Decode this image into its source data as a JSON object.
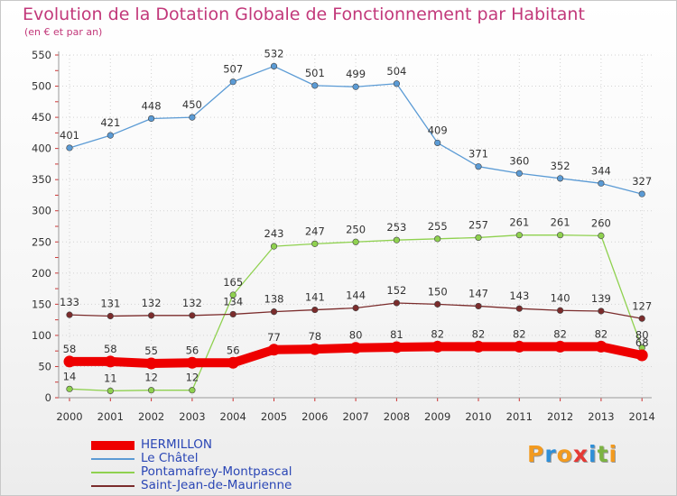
{
  "chart_data": {
    "type": "line",
    "title": "Evolution de la Dotation Globale de Fonctionnement par Habitant",
    "subtitle": "(en € et par an)",
    "xlabel": "",
    "ylabel": "",
    "ylim": [
      0,
      550
    ],
    "yticks": [
      0,
      50,
      100,
      150,
      200,
      250,
      300,
      350,
      400,
      450,
      500,
      550
    ],
    "grid": true,
    "legend_position": "bottom-left",
    "categories": [
      "2000",
      "2001",
      "2002",
      "2003",
      "2004",
      "2005",
      "2006",
      "2007",
      "2008",
      "2009",
      "2010",
      "2011",
      "2012",
      "2013",
      "2014"
    ],
    "series": [
      {
        "name": "HERMILLON",
        "color": "#ee0000",
        "emphasis": true,
        "values": [
          58,
          58,
          55,
          56,
          56,
          77,
          78,
          80,
          81,
          82,
          82,
          82,
          82,
          82,
          68
        ],
        "labels": [
          "58",
          "58",
          "55",
          "56",
          "56",
          "77",
          "78",
          "80",
          "81",
          "82",
          "82",
          "82",
          "82",
          "82",
          "68"
        ]
      },
      {
        "name": "Le Châtel",
        "color": "#5b9bd5",
        "emphasis": false,
        "values": [
          401,
          421,
          448,
          450,
          507,
          532,
          501,
          499,
          504,
          409,
          371,
          360,
          352,
          344,
          327
        ],
        "labels": [
          "401",
          "421",
          "448",
          "450",
          "507",
          "532",
          "501",
          "499",
          "504",
          "409",
          "371",
          "360",
          "352",
          "344",
          "327"
        ]
      },
      {
        "name": "Pontamafrey-Montpascal",
        "color": "#8fd14f",
        "emphasis": false,
        "values": [
          14,
          11,
          12,
          12,
          165,
          243,
          247,
          250,
          253,
          255,
          257,
          261,
          261,
          260,
          80
        ],
        "labels": [
          "14",
          "11",
          "12",
          "12",
          "165",
          "243",
          "247",
          "250",
          "253",
          "255",
          "257",
          "261",
          "261",
          "260",
          "80"
        ]
      },
      {
        "name": "Saint-Jean-de-Maurienne",
        "color": "#7b2c2c",
        "emphasis": false,
        "values": [
          133,
          131,
          132,
          132,
          134,
          138,
          141,
          144,
          152,
          150,
          147,
          143,
          140,
          139,
          127
        ],
        "labels": [
          "133",
          "131",
          "132",
          "132",
          "134",
          "138",
          "141",
          "144",
          "152",
          "150",
          "147",
          "143",
          "140",
          "139",
          "127"
        ]
      }
    ]
  },
  "logo": {
    "text": [
      "P",
      "r",
      "o",
      "x",
      "i",
      "t",
      "i"
    ],
    "colors": [
      "#f29a1f",
      "#2f8fd8",
      "#f29a1f",
      "#e53935",
      "#2f8fd8",
      "#7cb342",
      "#f29a1f"
    ]
  }
}
